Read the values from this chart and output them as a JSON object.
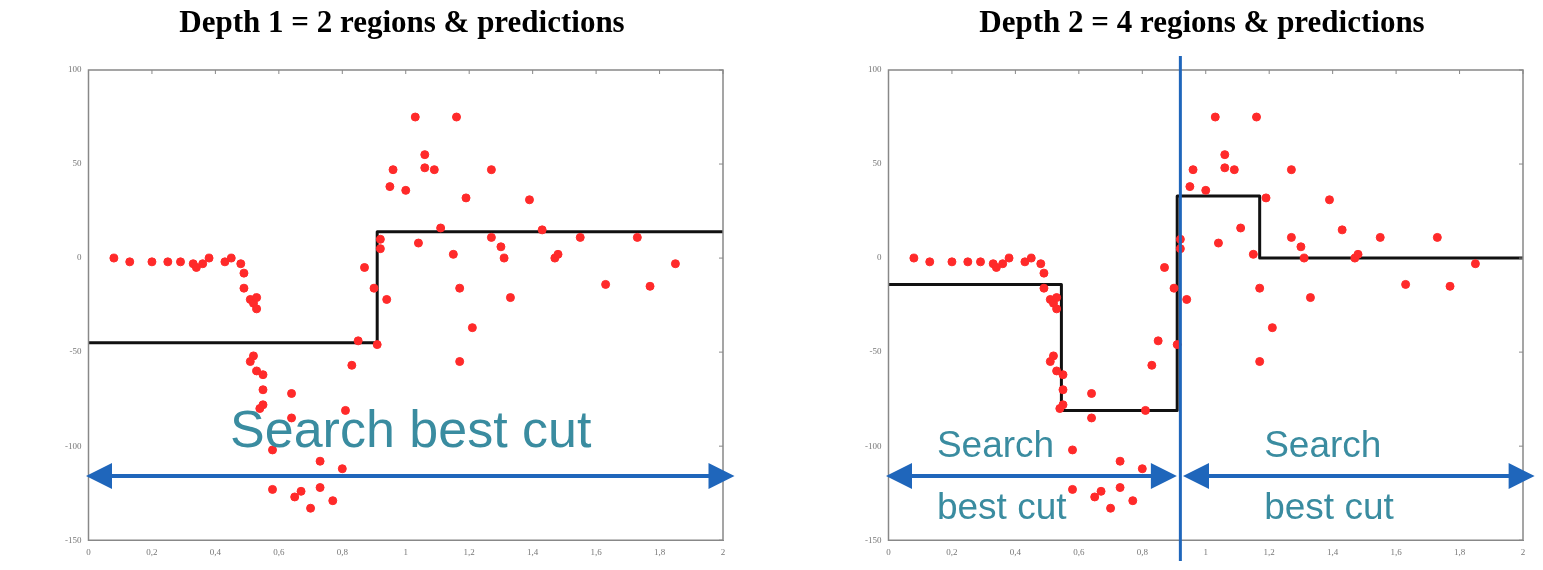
{
  "chart_data": [
    {
      "type": "scatter",
      "title": "Depth 1 = 2 regions & predictions",
      "xlim": [
        0,
        2
      ],
      "ylim": [
        -150,
        100
      ],
      "xticks": [
        0,
        {
          "value": 0.2,
          "label": "0,2"
        },
        {
          "value": 0.4,
          "label": "0,4"
        },
        {
          "value": 0.6,
          "label": "0,6"
        },
        {
          "value": 0.8,
          "label": "0,8"
        },
        1,
        {
          "value": 1.2,
          "label": "1,2"
        },
        {
          "value": 1.4,
          "label": "1,4"
        },
        {
          "value": 1.6,
          "label": "1,6"
        },
        {
          "value": 1.8,
          "label": "1,8"
        },
        2
      ],
      "yticks": [
        -150,
        -100,
        -50,
        0,
        50,
        100
      ],
      "grid": false,
      "legend": false,
      "annotations": [
        "Search best cut"
      ],
      "series": [
        {
          "type": "scatter",
          "color": "#ff2a2a",
          "marker": "circle",
          "x": [
            0.08,
            0.13,
            0.2,
            0.25,
            0.29,
            0.33,
            0.34,
            0.36,
            0.38,
            0.43,
            0.45,
            0.48,
            0.49,
            0.49,
            0.51,
            0.52,
            0.53,
            0.53,
            0.52,
            0.51,
            0.53,
            0.55,
            0.55,
            0.55,
            0.54,
            0.58,
            0.58,
            0.64,
            0.64,
            0.65,
            0.67,
            0.7,
            0.73,
            0.73,
            0.77,
            0.8,
            0.81,
            0.83,
            0.85,
            0.87,
            0.9,
            0.91,
            0.92,
            0.92,
            0.94,
            0.95,
            0.96,
            1.0,
            1.03,
            1.04,
            1.06,
            1.06,
            1.09,
            1.11,
            1.15,
            1.16,
            1.17,
            1.17,
            1.19,
            1.21,
            1.27,
            1.27,
            1.3,
            1.31,
            1.33,
            1.39,
            1.43,
            1.47,
            1.48,
            1.55,
            1.63,
            1.73,
            1.77,
            1.85
          ],
          "values": [
            0,
            -2,
            -2,
            -2,
            -2,
            -3,
            -5,
            -3,
            0,
            -2,
            0,
            -3,
            -8,
            -16,
            -22,
            -24,
            -27,
            -21,
            -52,
            -55,
            -60,
            -62,
            -70,
            -78,
            -80,
            -102,
            -123,
            -72,
            -85,
            -127,
            -124,
            -133,
            -108,
            -122,
            -129,
            -112,
            -81,
            -57,
            -44,
            -5,
            -16,
            -46,
            10,
            5,
            -22,
            38,
            47,
            36,
            75,
            8,
            55,
            48,
            47,
            16,
            2,
            75,
            -16,
            -55,
            32,
            -37,
            47,
            11,
            6,
            0,
            -21,
            31,
            15,
            0,
            2,
            11,
            -14,
            11,
            -15,
            -3
          ]
        },
        {
          "type": "step",
          "color": "#111111",
          "x": [
            0,
            0.91,
            2
          ],
          "values": [
            -45,
            14,
            14
          ]
        }
      ]
    },
    {
      "type": "scatter",
      "title": "Depth 2 = 4 regions & predictions",
      "xlim": [
        0,
        2
      ],
      "ylim": [
        -150,
        100
      ],
      "xticks": [
        0,
        {
          "value": 0.2,
          "label": "0,2"
        },
        {
          "value": 0.4,
          "label": "0,4"
        },
        {
          "value": 0.6,
          "label": "0,6"
        },
        {
          "value": 0.8,
          "label": "0,8"
        },
        1,
        {
          "value": 1.2,
          "label": "1,2"
        },
        {
          "value": 1.4,
          "label": "1,4"
        },
        {
          "value": 1.6,
          "label": "1,6"
        },
        {
          "value": 1.8,
          "label": "1,8"
        },
        2
      ],
      "yticks": [
        -150,
        -100,
        -50,
        0,
        50,
        100
      ],
      "grid": false,
      "legend": false,
      "annotations": [
        "Search best cut",
        "Search best cut"
      ],
      "ref_lines": [
        {
          "axis": "x",
          "value": 0.92,
          "color": "#1f66bb"
        }
      ],
      "series": [
        {
          "type": "scatter",
          "color": "#ff2a2a",
          "marker": "circle",
          "x": [
            0.08,
            0.13,
            0.2,
            0.25,
            0.29,
            0.33,
            0.34,
            0.36,
            0.38,
            0.43,
            0.45,
            0.48,
            0.49,
            0.49,
            0.51,
            0.52,
            0.53,
            0.53,
            0.52,
            0.51,
            0.53,
            0.55,
            0.55,
            0.55,
            0.54,
            0.58,
            0.58,
            0.64,
            0.64,
            0.65,
            0.67,
            0.7,
            0.73,
            0.73,
            0.77,
            0.8,
            0.81,
            0.83,
            0.85,
            0.87,
            0.9,
            0.91,
            0.92,
            0.92,
            0.94,
            0.95,
            0.96,
            1.0,
            1.03,
            1.04,
            1.06,
            1.06,
            1.09,
            1.11,
            1.15,
            1.16,
            1.17,
            1.17,
            1.19,
            1.21,
            1.27,
            1.27,
            1.3,
            1.31,
            1.33,
            1.39,
            1.43,
            1.47,
            1.48,
            1.55,
            1.63,
            1.73,
            1.77,
            1.85
          ],
          "values": [
            0,
            -2,
            -2,
            -2,
            -2,
            -3,
            -5,
            -3,
            0,
            -2,
            0,
            -3,
            -8,
            -16,
            -22,
            -24,
            -27,
            -21,
            -52,
            -55,
            -60,
            -62,
            -70,
            -78,
            -80,
            -102,
            -123,
            -72,
            -85,
            -127,
            -124,
            -133,
            -108,
            -122,
            -129,
            -112,
            -81,
            -57,
            -44,
            -5,
            -16,
            -46,
            10,
            5,
            -22,
            38,
            47,
            36,
            75,
            8,
            55,
            48,
            47,
            16,
            2,
            75,
            -16,
            -55,
            32,
            -37,
            47,
            11,
            6,
            0,
            -21,
            31,
            15,
            0,
            2,
            11,
            -14,
            11,
            -15,
            -3
          ]
        },
        {
          "type": "step",
          "color": "#111111",
          "x": [
            0,
            0.545,
            0.91,
            1.17,
            2
          ],
          "values": [
            -14,
            -81,
            33,
            0,
            0
          ]
        }
      ]
    }
  ]
}
